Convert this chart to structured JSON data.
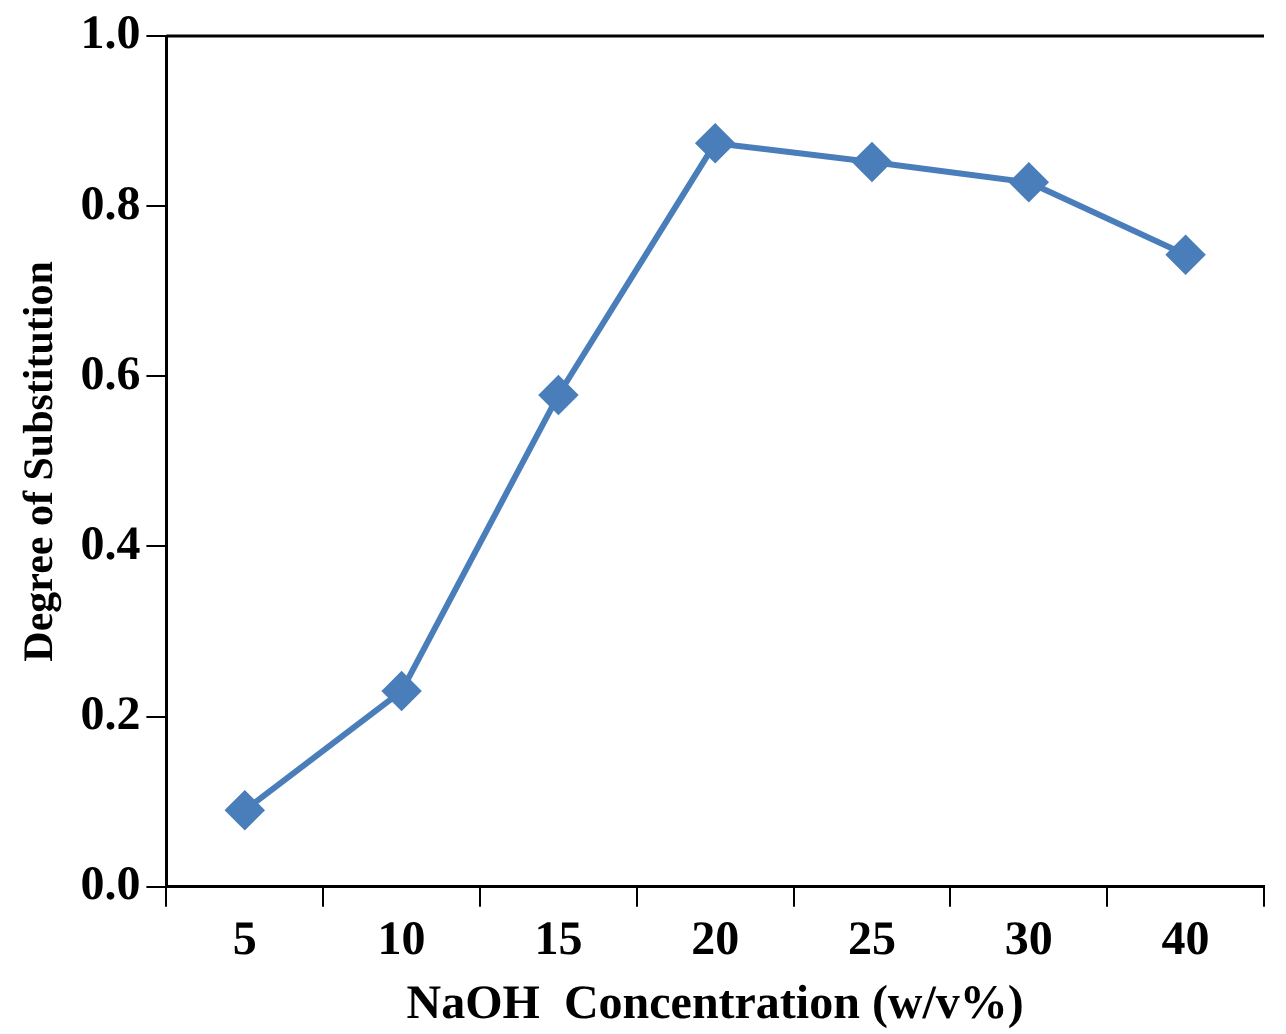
{
  "chart_data": {
    "type": "line",
    "xlabel": "NaOH  Concentration (w/v%)",
    "ylabel": "Degree of Substitution",
    "categories": [
      "5",
      "10",
      "15",
      "20",
      "25",
      "30",
      "40"
    ],
    "series": [
      {
        "color": "#4a7ebb",
        "values": [
          0.09,
          0.23,
          0.578,
          0.874,
          0.852,
          0.828,
          0.743
        ]
      }
    ],
    "ylim": [
      0,
      1
    ],
    "yticks": [
      {
        "value": 0,
        "label": "0.0"
      },
      0.2,
      0.4,
      0.6,
      0.8,
      {
        "value": 1,
        "label": "1.0"
      }
    ],
    "grid": false,
    "legend": false,
    "marker": "diamond",
    "line_style": "solid"
  }
}
